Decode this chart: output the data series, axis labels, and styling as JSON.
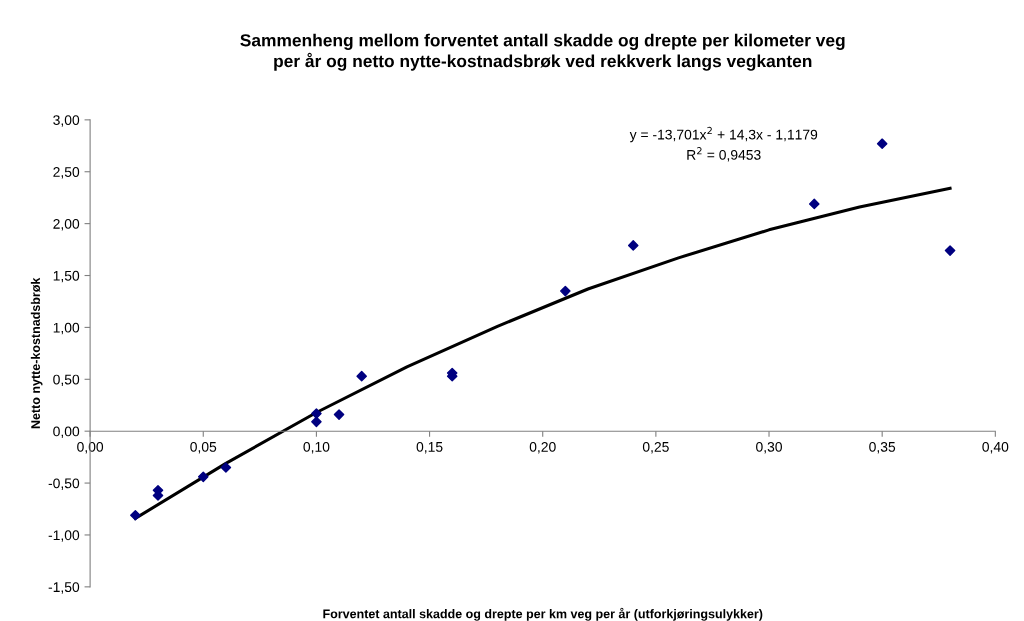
{
  "chart_data": {
    "type": "scatter",
    "title": "Sammenheng mellom forventet antall skadde og drepte per kilometer veg\nper år og netto nytte-kostnadsbrøk ved rekkverk langs vegkanten",
    "xlabel": "Forventet antall skadde og drepte per km veg per år (utforkjøringsulykker)",
    "ylabel": "Netto nytte-kostnadsbrøk",
    "annotations": [
      "y = -13,701x$^{2}$ + 14,3x - 1,1179\nR$^{2}$ = 0,9453"
    ],
    "series": [
      {
        "color": "#000080",
        "marker": "diamond",
        "x": [
          0.02,
          0.03,
          0.03,
          0.05,
          0.06,
          0.1,
          0.1,
          0.11,
          0.12,
          0.16,
          0.16,
          0.21,
          0.24,
          0.32,
          0.35,
          0.38
        ],
        "values": [
          -0.81,
          -0.57,
          -0.62,
          -0.44,
          -0.35,
          0.17,
          0.09,
          0.16,
          0.53,
          0.56,
          0.53,
          1.35,
          1.79,
          2.19,
          2.77,
          1.74
        ]
      },
      {
        "type": "line",
        "color": "#000000",
        "marker": "none",
        "x": [
          0.02,
          0.06,
          0.1,
          0.14,
          0.18,
          0.22,
          0.26,
          0.3,
          0.34,
          0.38
        ],
        "values": [
          -0.84,
          -0.31,
          0.18,
          0.62,
          1.01,
          1.37,
          1.67,
          1.94,
          2.16,
          2.34
        ]
      }
    ],
    "xlim": [
      0,
      0.4
    ],
    "xticks": [
      {
        "value": 0,
        "label": "0,00"
      },
      {
        "value": 0.05,
        "label": "0,05"
      },
      {
        "value": 0.1,
        "label": "0,10"
      },
      {
        "value": 0.15,
        "label": "0,15"
      },
      {
        "value": 0.2,
        "label": "0,20"
      },
      {
        "value": 0.25,
        "label": "0,25"
      },
      {
        "value": 0.3,
        "label": "0,30"
      },
      {
        "value": 0.35,
        "label": "0,35"
      },
      {
        "value": 0.4,
        "label": "0,40"
      }
    ],
    "ylim": [
      -1.5,
      3.0
    ],
    "yticks": [
      {
        "value": -1.5,
        "label": "-1,50"
      },
      {
        "value": -1.0,
        "label": "-1,00"
      },
      {
        "value": -0.5,
        "label": "-0,50"
      },
      {
        "value": 0,
        "label": "0,00"
      },
      {
        "value": 0.5,
        "label": "0,50"
      },
      {
        "value": 1.0,
        "label": "1,00"
      },
      {
        "value": 1.5,
        "label": "1,50"
      },
      {
        "value": 2.0,
        "label": "2,00"
      },
      {
        "value": 2.5,
        "label": "2,50"
      },
      {
        "value": 3.0,
        "label": "3,00"
      }
    ],
    "grid": false,
    "legend": false
  }
}
